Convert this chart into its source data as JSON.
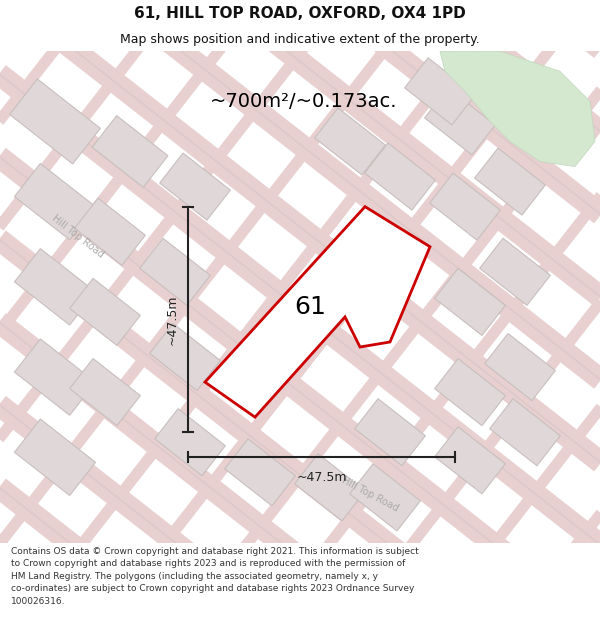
{
  "title": "61, HILL TOP ROAD, OXFORD, OX4 1PD",
  "subtitle": "Map shows position and indicative extent of the property.",
  "area_label": "~700m²/~0.173ac.",
  "dim_h_label": "~47.5m",
  "dim_v_label": "~47.5m",
  "property_number": "61",
  "footer": "Contains OS data © Crown copyright and database right 2021. This information is subject to Crown copyright and database rights 2023 and is reproduced with the permission of HM Land Registry. The polygons (including the associated geometry, namely x, y co-ordinates) are subject to Crown copyright and database rights 2023 Ordnance Survey 100026316.",
  "bg_color": "#ffffff",
  "map_bg": "#f5f2f2",
  "road_stroke_color": "#e8d0d0",
  "road_center_color": "#f5f0f0",
  "building_facecolor": "#e0d8d8",
  "building_edgecolor": "#c8bebe",
  "green_facecolor": "#d4e8d0",
  "green_edgecolor": "#c0d8bc",
  "property_facecolor": "#ffffff",
  "property_edgecolor": "#cc0000",
  "property_lw": 2.0,
  "dim_color": "#222222",
  "title_fontsize": 11,
  "subtitle_fontsize": 9,
  "area_fontsize": 14,
  "prop_num_fontsize": 18,
  "dim_fontsize": 9,
  "road_label_fontsize": 7,
  "road_label_color": "#aaaaaa",
  "footer_fontsize": 6.5,
  "footer_color": "#333333",
  "title_color": "#111111"
}
